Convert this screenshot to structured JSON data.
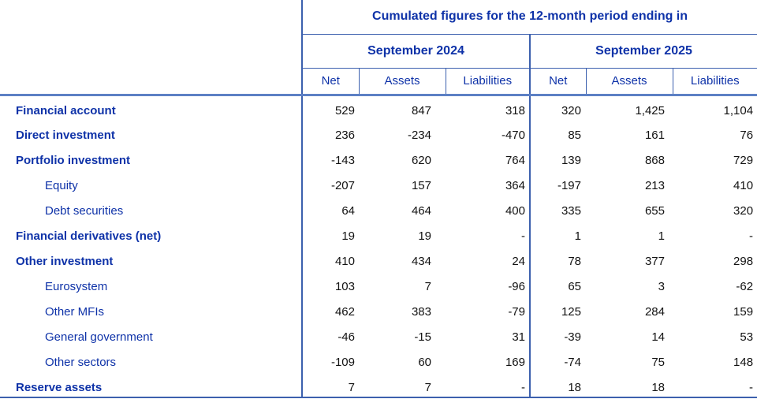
{
  "colors": {
    "blue_text": "#0e32a8",
    "number_text": "#121212",
    "grid_line": "#3c60ae",
    "thick_line": "#5d80c4",
    "background": "#ffffff"
  },
  "table": {
    "title": "Cumulated figures for the 12-month period ending in",
    "period_headers": [
      "September 2024",
      "September 2025"
    ],
    "column_headers": [
      "Net",
      "Assets",
      "Liabilities",
      "Net",
      "Assets",
      "Liabilities"
    ],
    "rows": [
      {
        "label": "Financial account",
        "style": "bold",
        "values": [
          "529",
          "847",
          "318",
          "320",
          "1,425",
          "1,104"
        ]
      },
      {
        "label": "Direct investment",
        "style": "bold",
        "values": [
          "236",
          "-234",
          "-470",
          "85",
          "161",
          "76"
        ]
      },
      {
        "label": "Portfolio investment",
        "style": "bold",
        "values": [
          "-143",
          "620",
          "764",
          "139",
          "868",
          "729"
        ]
      },
      {
        "label": "Equity",
        "style": "indent",
        "values": [
          "-207",
          "157",
          "364",
          "-197",
          "213",
          "410"
        ]
      },
      {
        "label": "Debt securities",
        "style": "indent",
        "values": [
          "64",
          "464",
          "400",
          "335",
          "655",
          "320"
        ]
      },
      {
        "label": "Financial derivatives (net)",
        "style": "bold",
        "values": [
          "19",
          "19",
          "-",
          "1",
          "1",
          "-"
        ]
      },
      {
        "label": "Other investment",
        "style": "bold",
        "values": [
          "410",
          "434",
          "24",
          "78",
          "377",
          "298"
        ]
      },
      {
        "label": "Eurosystem",
        "style": "indent",
        "values": [
          "103",
          "7",
          "-96",
          "65",
          "3",
          "-62"
        ]
      },
      {
        "label": "Other MFIs",
        "style": "indent",
        "values": [
          "462",
          "383",
          "-79",
          "125",
          "284",
          "159"
        ]
      },
      {
        "label": "General government",
        "style": "indent",
        "values": [
          "-46",
          "-15",
          "31",
          "-39",
          "14",
          "53"
        ]
      },
      {
        "label": "Other sectors",
        "style": "indent",
        "values": [
          "-109",
          "60",
          "169",
          "-74",
          "75",
          "148"
        ]
      },
      {
        "label": "Reserve assets",
        "style": "bold",
        "values": [
          "7",
          "7",
          "-",
          "18",
          "18",
          "-"
        ]
      }
    ]
  }
}
